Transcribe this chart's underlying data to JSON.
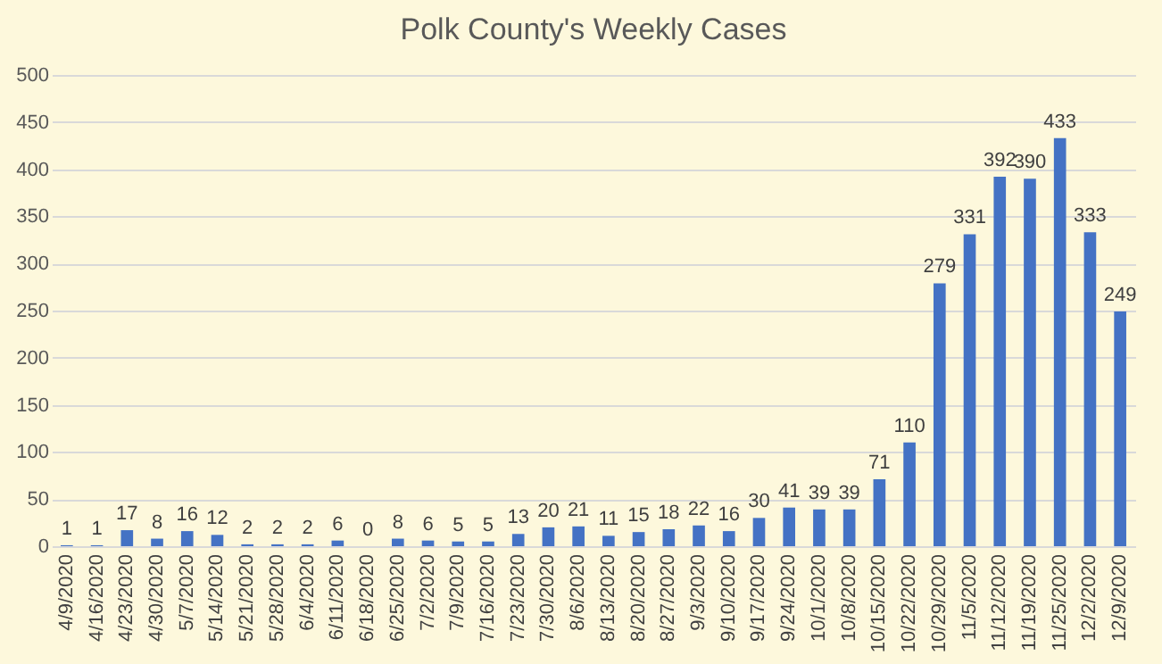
{
  "chart_data": {
    "type": "bar",
    "title": "Polk County's Weekly Cases",
    "categories": [
      "4/9/2020",
      "4/16/2020",
      "4/23/2020",
      "4/30/2020",
      "5/7/2020",
      "5/14/2020",
      "5/21/2020",
      "5/28/2020",
      "6/4/2020",
      "6/11/2020",
      "6/18/2020",
      "6/25/2020",
      "7/2/2020",
      "7/9/2020",
      "7/16/2020",
      "7/23/2020",
      "7/30/2020",
      "8/6/2020",
      "8/13/2020",
      "8/20/2020",
      "8/27/2020",
      "9/3/2020",
      "9/10/2020",
      "9/17/2020",
      "9/24/2020",
      "10/1/2020",
      "10/8/2020",
      "10/15/2020",
      "10/22/2020",
      "10/29/2020",
      "11/5/2020",
      "11/12/2020",
      "11/19/2020",
      "11/25/2020",
      "12/2/2020",
      "12/9/2020"
    ],
    "values": [
      1,
      1,
      17,
      8,
      16,
      12,
      2,
      2,
      2,
      6,
      0,
      8,
      6,
      5,
      5,
      13,
      20,
      21,
      11,
      15,
      18,
      22,
      16,
      30,
      41,
      39,
      39,
      71,
      110,
      279,
      331,
      392,
      390,
      433,
      333,
      249
    ],
    "color": "#4472c4",
    "ylim": [
      0,
      500
    ],
    "yticks": [
      0,
      50,
      100,
      150,
      200,
      250,
      300,
      350,
      400,
      450,
      500
    ],
    "grid": "y",
    "data_labels": true
  }
}
